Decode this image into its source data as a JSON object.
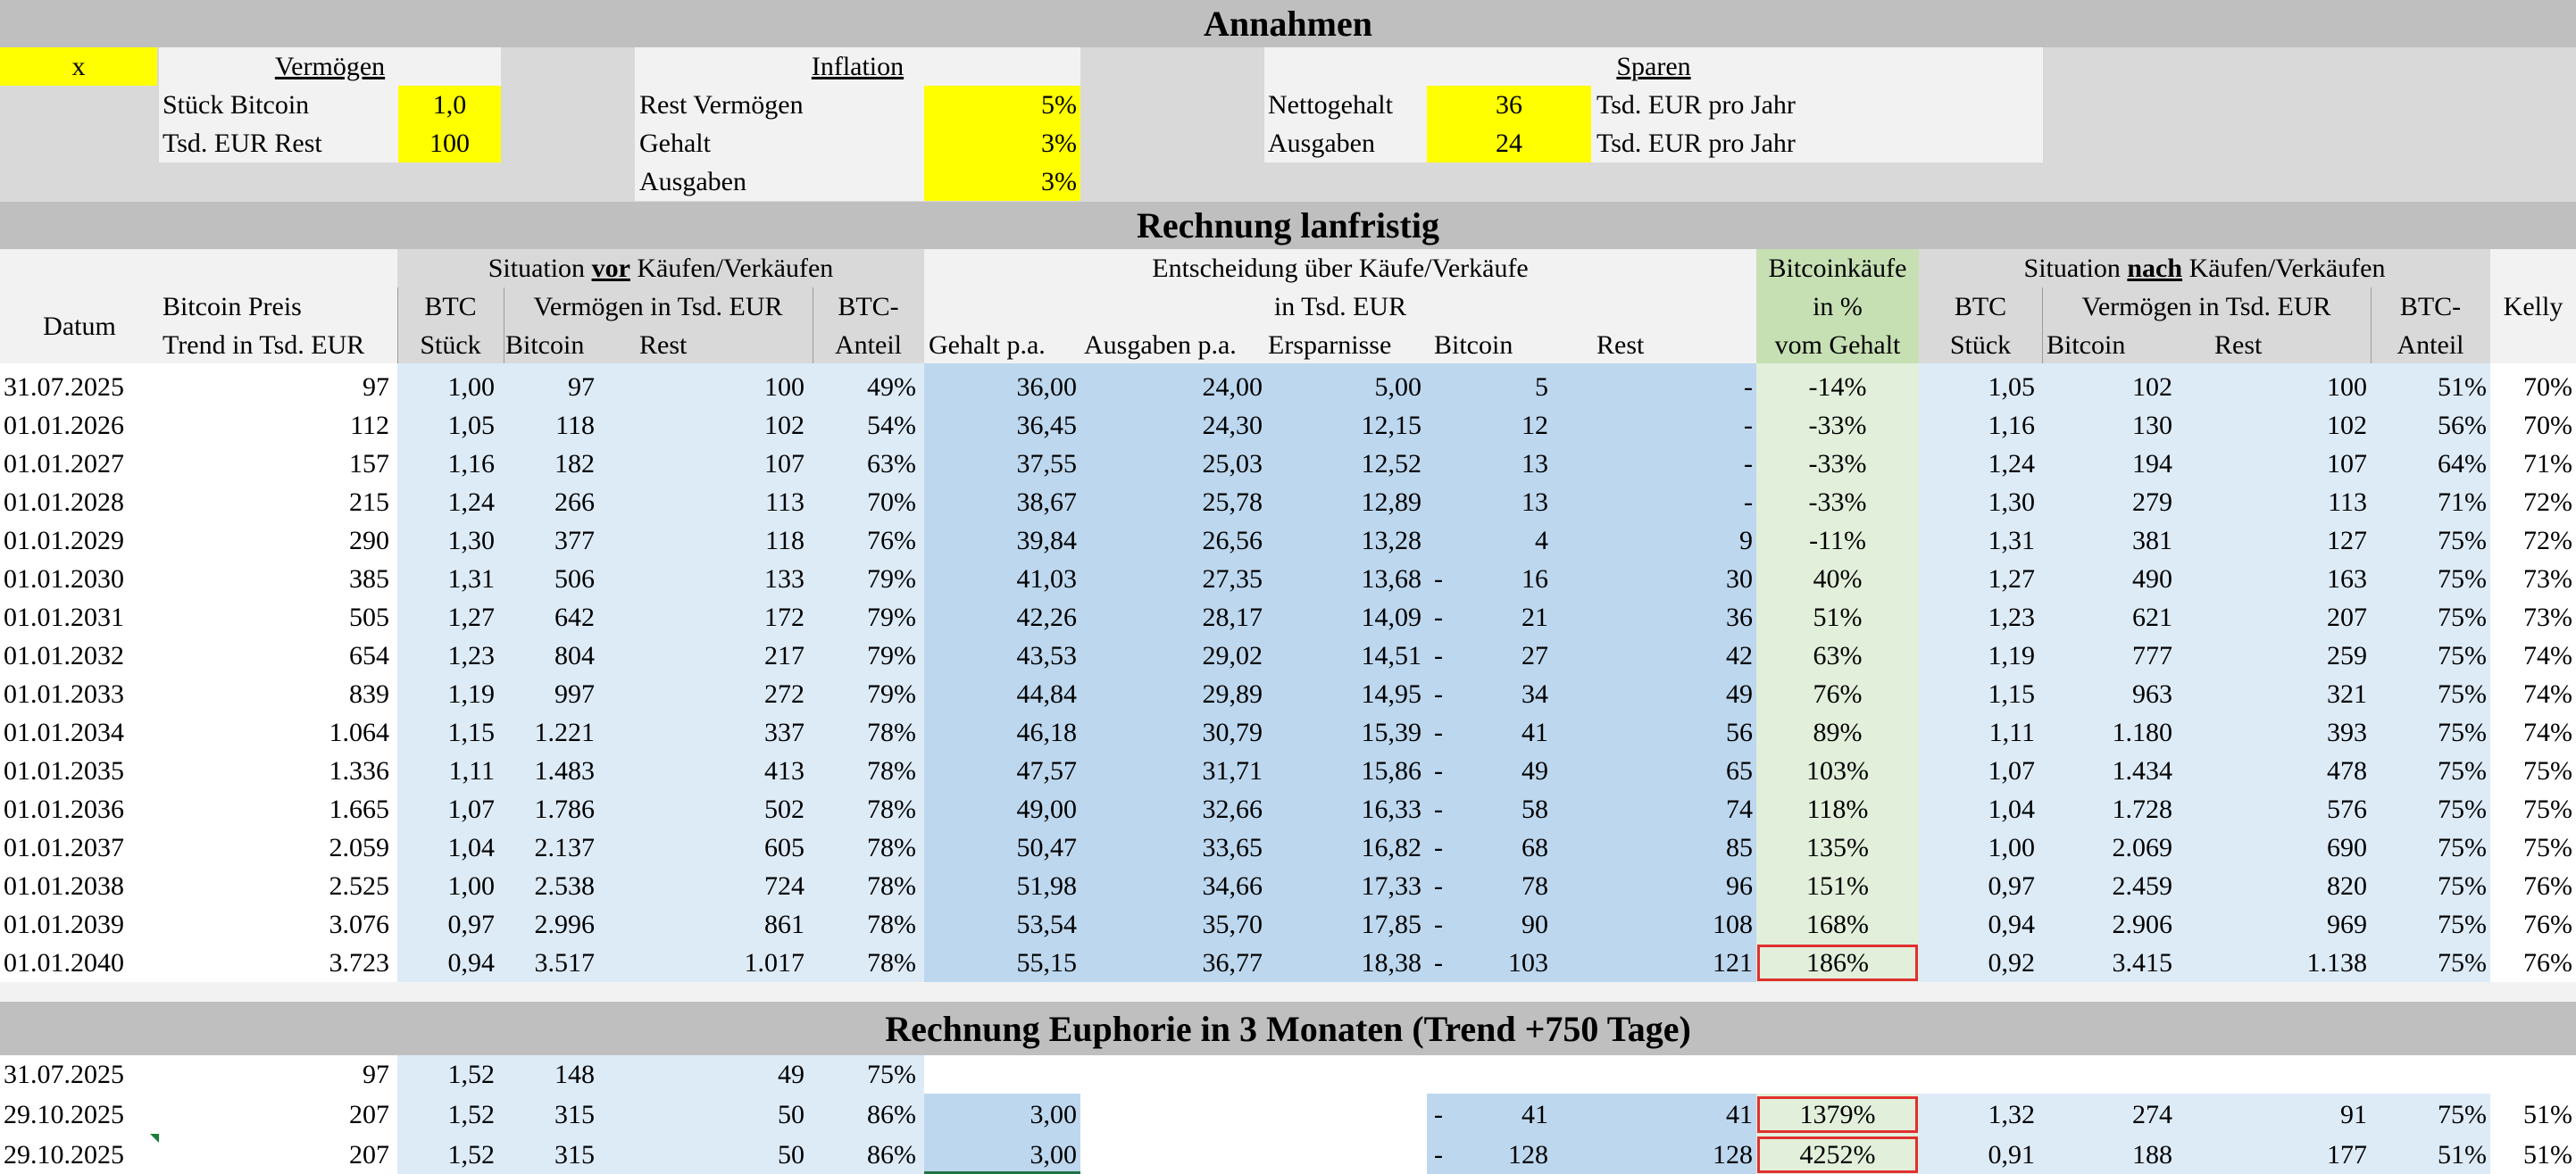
{
  "assumptions": {
    "title": "Annahmen",
    "marker": "x",
    "vermoegen": {
      "header": "Vermögen",
      "rows": [
        {
          "label": "Stück Bitcoin",
          "value": "1,0"
        },
        {
          "label": "Tsd. EUR Rest",
          "value": "100"
        }
      ]
    },
    "inflation": {
      "header": "Inflation",
      "rows": [
        {
          "label": "Rest Vermögen",
          "value": "5%"
        },
        {
          "label": "Gehalt",
          "value": "3%"
        },
        {
          "label": "Ausgaben",
          "value": "3%"
        }
      ]
    },
    "sparen": {
      "header": "Sparen",
      "rows": [
        {
          "label": "Nettogehalt",
          "value": "36",
          "unit": "Tsd. EUR pro Jahr"
        },
        {
          "label": "Ausgaben",
          "value": "24",
          "unit": "Tsd. EUR pro Jahr"
        }
      ]
    }
  },
  "longterm": {
    "title": "Rechnung lanfristig",
    "headers": {
      "datum": "Datum",
      "preis1": "Bitcoin Preis",
      "preis2": "Trend in Tsd. EUR",
      "vor_pre": "Situation ",
      "vor_u": "vor",
      "vor_post": " Käufen/Verkäufen",
      "btc1": "BTC",
      "btc2": "Stück",
      "verm": "Vermögen in Tsd. EUR",
      "bitcoin": "Bitcoin",
      "rest": "Rest",
      "anteil1": "BTC-",
      "anteil2": "Anteil",
      "ent1": "Entscheidung über Käufe/Verkäufe",
      "ent2": "in Tsd. EUR",
      "gehalt": "Gehalt p.a.",
      "ausgaben": "Ausgaben p.a.",
      "ersparnisse": "Ersparnisse",
      "e_bitcoin": "Bitcoin",
      "e_rest": "Rest",
      "bk1": "Bitcoinkäufe",
      "bk2": "in %",
      "bk3": "vom Gehalt",
      "nach_pre": "Situation ",
      "nach_u": "nach",
      "nach_post": " Käufen/Verkäufen",
      "kelly": "Kelly"
    },
    "rows": [
      [
        "31.07.2025",
        "97",
        "1,00",
        "97",
        "100",
        "49%",
        "36,00",
        "24,00",
        "5,00",
        "",
        "5",
        "-",
        "-14%",
        "1,05",
        "102",
        "100",
        "51%",
        "70%"
      ],
      [
        "01.01.2026",
        "112",
        "1,05",
        "118",
        "102",
        "54%",
        "36,45",
        "24,30",
        "12,15",
        "",
        "12",
        "-",
        "-33%",
        "1,16",
        "130",
        "102",
        "56%",
        "70%"
      ],
      [
        "01.01.2027",
        "157",
        "1,16",
        "182",
        "107",
        "63%",
        "37,55",
        "25,03",
        "12,52",
        "",
        "13",
        "-",
        "-33%",
        "1,24",
        "194",
        "107",
        "64%",
        "71%"
      ],
      [
        "01.01.2028",
        "215",
        "1,24",
        "266",
        "113",
        "70%",
        "38,67",
        "25,78",
        "12,89",
        "",
        "13",
        "-",
        "-33%",
        "1,30",
        "279",
        "113",
        "71%",
        "72%"
      ],
      [
        "01.01.2029",
        "290",
        "1,30",
        "377",
        "118",
        "76%",
        "39,84",
        "26,56",
        "13,28",
        "",
        "4",
        "9",
        "-11%",
        "1,31",
        "381",
        "127",
        "75%",
        "72%"
      ],
      [
        "01.01.2030",
        "385",
        "1,31",
        "506",
        "133",
        "79%",
        "41,03",
        "27,35",
        "13,68",
        "-",
        "16",
        "30",
        "40%",
        "1,27",
        "490",
        "163",
        "75%",
        "73%"
      ],
      [
        "01.01.2031",
        "505",
        "1,27",
        "642",
        "172",
        "79%",
        "42,26",
        "28,17",
        "14,09",
        "-",
        "21",
        "36",
        "51%",
        "1,23",
        "621",
        "207",
        "75%",
        "73%"
      ],
      [
        "01.01.2032",
        "654",
        "1,23",
        "804",
        "217",
        "79%",
        "43,53",
        "29,02",
        "14,51",
        "-",
        "27",
        "42",
        "63%",
        "1,19",
        "777",
        "259",
        "75%",
        "74%"
      ],
      [
        "01.01.2033",
        "839",
        "1,19",
        "997",
        "272",
        "79%",
        "44,84",
        "29,89",
        "14,95",
        "-",
        "34",
        "49",
        "76%",
        "1,15",
        "963",
        "321",
        "75%",
        "74%"
      ],
      [
        "01.01.2034",
        "1.064",
        "1,15",
        "1.221",
        "337",
        "78%",
        "46,18",
        "30,79",
        "15,39",
        "-",
        "41",
        "56",
        "89%",
        "1,11",
        "1.180",
        "393",
        "75%",
        "74%"
      ],
      [
        "01.01.2035",
        "1.336",
        "1,11",
        "1.483",
        "413",
        "78%",
        "47,57",
        "31,71",
        "15,86",
        "-",
        "49",
        "65",
        "103%",
        "1,07",
        "1.434",
        "478",
        "75%",
        "75%"
      ],
      [
        "01.01.2036",
        "1.665",
        "1,07",
        "1.786",
        "502",
        "78%",
        "49,00",
        "32,66",
        "16,33",
        "-",
        "58",
        "74",
        "118%",
        "1,04",
        "1.728",
        "576",
        "75%",
        "75%"
      ],
      [
        "01.01.2037",
        "2.059",
        "1,04",
        "2.137",
        "605",
        "78%",
        "50,47",
        "33,65",
        "16,82",
        "-",
        "68",
        "85",
        "135%",
        "1,00",
        "2.069",
        "690",
        "75%",
        "75%"
      ],
      [
        "01.01.2038",
        "2.525",
        "1,00",
        "2.538",
        "724",
        "78%",
        "51,98",
        "34,66",
        "17,33",
        "-",
        "78",
        "96",
        "151%",
        "0,97",
        "2.459",
        "820",
        "75%",
        "76%"
      ],
      [
        "01.01.2039",
        "3.076",
        "0,97",
        "2.996",
        "861",
        "78%",
        "53,54",
        "35,70",
        "17,85",
        "-",
        "90",
        "108",
        "168%",
        "0,94",
        "2.906",
        "969",
        "75%",
        "76%"
      ],
      [
        "01.01.2040",
        "3.723",
        "0,94",
        "3.517",
        "1.017",
        "78%",
        "55,15",
        "36,77",
        "18,38",
        "-",
        "103",
        "121",
        "186%",
        "0,92",
        "3.415",
        "1.138",
        "75%",
        "76%"
      ]
    ]
  },
  "euphoria": {
    "title": "Rechnung Euphorie in 3 Monaten (Trend +750 Tage)",
    "rows": [
      [
        "31.07.2025",
        "97",
        "1,52",
        "148",
        "49",
        "75%",
        "",
        "",
        "",
        "",
        "",
        "",
        "",
        "",
        "",
        "",
        "",
        ""
      ],
      [
        "29.10.2025",
        "207",
        "1,52",
        "315",
        "50",
        "86%",
        "3,00",
        "",
        "",
        "-",
        "41",
        "41",
        "1379%",
        "1,32",
        "274",
        "91",
        "75%",
        "51%"
      ],
      [
        "29.10.2025",
        "207",
        "1,52",
        "315",
        "50",
        "86%",
        "3,00",
        "",
        "",
        "-",
        "128",
        "128",
        "4252%",
        "0,91",
        "188",
        "177",
        "51%",
        "51%"
      ]
    ]
  },
  "colors": {
    "band": "#bfbfbf",
    "light_blue": "#ddebf7",
    "mid_blue": "#bdd7ee",
    "green": "#c6e0b4",
    "light_green": "#e2efda",
    "yellow": "#ffff00",
    "highlight_border": "#e03030"
  }
}
